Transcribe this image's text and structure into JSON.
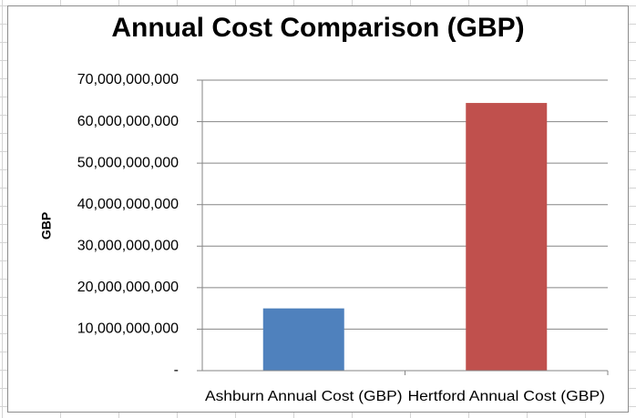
{
  "chart_data": {
    "type": "bar",
    "title": "Annual Cost Comparison (GBP)",
    "xlabel": "",
    "ylabel": "GBP",
    "categories": [
      "Ashburn Annual Cost (GBP)",
      "Hertford Annual Cost (GBP)"
    ],
    "values": [
      15000000000,
      64500000000
    ],
    "bar_colors": [
      "#4f81bd",
      "#c0504d"
    ],
    "ylim": [
      0,
      70000000000
    ],
    "yticks": [
      0,
      10000000000,
      20000000000,
      30000000000,
      40000000000,
      50000000000,
      60000000000,
      70000000000
    ],
    "ytick_labels": [
      "-",
      "10,000,000,000",
      "20,000,000,000",
      "30,000,000,000",
      "40,000,000,000",
      "50,000,000,000",
      "60,000,000,000",
      "70,000,000,000"
    ],
    "grid": true,
    "legend": "none"
  }
}
